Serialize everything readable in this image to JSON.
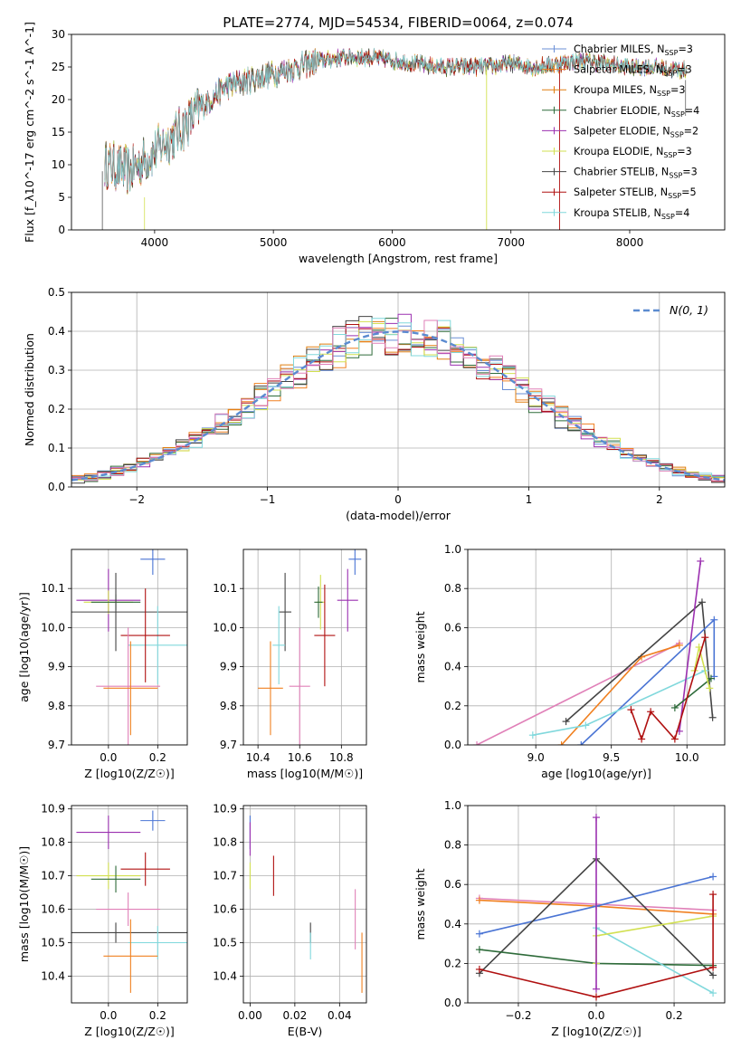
{
  "figure_title": "PLATE=2774, MJD=54534, FIBERID=0064, z=0.074",
  "colors": {
    "chabrier_miles": "#6a8fd6",
    "salpeter_miles": "#f08020",
    "kroupa_miles": "#e07f10",
    "chabrier_elodie": "#2e6b3a",
    "salpeter_elodie": "#9b30b0",
    "kroupa_elodie": "#d2e050",
    "chabrier_stelib": "#444444",
    "salpeter_stelib": "#b01010",
    "kroupa_stelib": "#80d8dc",
    "pink": "#e080b8",
    "green": "#5a8a5a",
    "blue": "#4a74d4",
    "normal_curve": "#5b8bd0",
    "grid": "#b0b0b0"
  },
  "chart_data": [
    {
      "id": "spectrum",
      "type": "line",
      "title": "",
      "xlabel": "wavelength [Angstrom, rest frame]",
      "ylabel": "Flux [f_λ10^-17 erg cm^-2 s^-1 A^-1]",
      "xlim": [
        3300,
        8800
      ],
      "ylim": [
        0,
        30
      ],
      "xticks": [
        4000,
        5000,
        6000,
        7000,
        8000
      ],
      "yticks": [
        0,
        5,
        10,
        15,
        20,
        25,
        30
      ],
      "grid": false,
      "legend_position": "right",
      "continuum_x": [
        3600,
        3800,
        4000,
        4200,
        4400,
        4600,
        4800,
        5000,
        5200,
        5400,
        5600,
        5800,
        6000,
        6200,
        6400,
        6600,
        6800,
        7000,
        7200,
        7400,
        7600,
        7800,
        8000,
        8200,
        8400
      ],
      "continuum_y": [
        10,
        9,
        12,
        15,
        19,
        22,
        23,
        24,
        25,
        26,
        26.5,
        26.5,
        26,
        25.5,
        25,
        25,
        25,
        25.5,
        25,
        25.5,
        26,
        25.5,
        25,
        25,
        24.5
      ],
      "series": [
        {
          "name": "Chabrier MILES, N_SSP=3",
          "color_key": "chabrier_miles"
        },
        {
          "name": "Salpeter MILES, N_SSP=3",
          "color_key": "salpeter_miles"
        },
        {
          "name": "Kroupa MILES, N_SSP=3",
          "color_key": "kroupa_miles"
        },
        {
          "name": "Chabrier ELODIE, N_SSP=4",
          "color_key": "chabrier_elodie"
        },
        {
          "name": "Salpeter ELODIE, N_SSP=2",
          "color_key": "salpeter_elodie"
        },
        {
          "name": "Kroupa ELODIE, N_SSP=3",
          "color_key": "kroupa_elodie"
        },
        {
          "name": "Chabrier STELIB, N_SSP=3",
          "color_key": "chabrier_stelib"
        },
        {
          "name": "Salpeter STELIB, N_SSP=5",
          "color_key": "salpeter_stelib"
        },
        {
          "name": "Kroupa STELIB, N_SSP=4",
          "color_key": "kroupa_stelib"
        }
      ]
    },
    {
      "id": "residuals",
      "type": "histogram",
      "title": "",
      "xlabel": "(data-model)/error",
      "ylabel": "Normed distribution",
      "xlim": [
        -2.5,
        2.5
      ],
      "ylim": [
        0,
        0.5
      ],
      "xticks": [
        -2,
        -1,
        0,
        1,
        2
      ],
      "xticklabels": [
        "−2",
        "−1",
        "0",
        "1",
        "2"
      ],
      "yticks": [
        0,
        0.1,
        0.2,
        0.3,
        0.4,
        0.5
      ],
      "yticklabels": [
        "0.0",
        "0.1",
        "0.2",
        "0.3",
        "0.4",
        "0.5"
      ],
      "grid": true,
      "legend_position": "top-right",
      "legend_label": "N(0, 1)",
      "bin_width": 0.1
    },
    {
      "id": "age_vs_Z",
      "type": "scatter",
      "xlabel": "Z [log10(Z/Z☉)]",
      "ylabel": "age [log10(age/yr)]",
      "xlim": [
        -0.15,
        0.32
      ],
      "ylim": [
        9.7,
        10.2
      ],
      "xticks": [
        0.0,
        0.2
      ],
      "xticklabels": [
        "0.0",
        "0.2"
      ],
      "yticks": [
        9.7,
        9.8,
        9.9,
        10.0,
        10.1
      ],
      "yticklabels": [
        "9.7",
        "9.8",
        "9.9",
        "10.0",
        "10.1"
      ],
      "grid": true,
      "points": [
        {
          "x": 0.18,
          "y": 10.175,
          "xerr": 0.05,
          "yerr": 0.04,
          "color_key": "blue"
        },
        {
          "x": 0.0,
          "y": 10.07,
          "xerr": 0.13,
          "yerr": 0.08,
          "color_key": "salpeter_elodie"
        },
        {
          "x": 0.0,
          "y": 10.065,
          "xerr": 0.1,
          "yerr": 0.03,
          "color_key": "kroupa_elodie"
        },
        {
          "x": 0.03,
          "y": 10.065,
          "xerr": 0.1,
          "yerr": 0.02,
          "color_key": "chabrier_elodie"
        },
        {
          "x": 0.03,
          "y": 10.04,
          "xerr": 0.3,
          "yerr": 0.1,
          "color_key": "chabrier_stelib"
        },
        {
          "x": 0.2,
          "y": 9.955,
          "xerr": 0.12,
          "yerr": 0.1,
          "color_key": "kroupa_stelib"
        },
        {
          "x": 0.15,
          "y": 9.98,
          "xerr": 0.1,
          "yerr": 0.12,
          "color_key": "salpeter_stelib"
        },
        {
          "x": 0.08,
          "y": 9.85,
          "xerr": 0.13,
          "yerr": 0.15,
          "color_key": "pink"
        },
        {
          "x": 0.09,
          "y": 9.845,
          "xerr": 0.11,
          "yerr": 0.12,
          "color_key": "salpeter_miles"
        }
      ]
    },
    {
      "id": "age_vs_mass",
      "type": "scatter",
      "xlabel": "mass [log10(M/M☉)]",
      "ylabel": "",
      "xlim": [
        10.33,
        10.92
      ],
      "ylim": [
        9.7,
        10.2
      ],
      "xticks": [
        10.4,
        10.6,
        10.8
      ],
      "xticklabels": [
        "10.4",
        "10.6",
        "10.8"
      ],
      "yticks": [
        9.7,
        9.8,
        9.9,
        10.0,
        10.1
      ],
      "yticklabels": [
        "9.7",
        "9.8",
        "9.9",
        "10.0",
        "10.1"
      ],
      "grid": true,
      "points": [
        {
          "x": 10.865,
          "y": 10.175,
          "xerr": 0.03,
          "yerr": 0.04,
          "color_key": "blue"
        },
        {
          "x": 10.83,
          "y": 10.07,
          "xerr": 0.05,
          "yerr": 0.08,
          "color_key": "salpeter_elodie"
        },
        {
          "x": 10.7,
          "y": 10.065,
          "xerr": 0.02,
          "yerr": 0.07,
          "color_key": "kroupa_elodie"
        },
        {
          "x": 10.69,
          "y": 10.065,
          "xerr": 0.02,
          "yerr": 0.04,
          "color_key": "chabrier_elodie"
        },
        {
          "x": 10.53,
          "y": 10.04,
          "xerr": 0.03,
          "yerr": 0.1,
          "color_key": "chabrier_stelib"
        },
        {
          "x": 10.5,
          "y": 9.955,
          "xerr": 0.03,
          "yerr": 0.1,
          "color_key": "kroupa_stelib"
        },
        {
          "x": 10.72,
          "y": 9.98,
          "xerr": 0.05,
          "yerr": 0.13,
          "color_key": "salpeter_stelib"
        },
        {
          "x": 10.6,
          "y": 9.85,
          "xerr": 0.05,
          "yerr": 0.15,
          "color_key": "pink"
        },
        {
          "x": 10.46,
          "y": 9.845,
          "xerr": 0.06,
          "yerr": 0.12,
          "color_key": "salpeter_miles"
        }
      ]
    },
    {
      "id": "weight_vs_age",
      "type": "line",
      "xlabel": "age [log10(age/yr)]",
      "ylabel": "mass weight",
      "xlim": [
        8.55,
        10.25
      ],
      "ylim": [
        0,
        1
      ],
      "xticks": [
        9.0,
        9.5,
        10.0
      ],
      "xticklabels": [
        "9.0",
        "9.5",
        "10.0"
      ],
      "yticks": [
        0,
        0.2,
        0.4,
        0.6,
        0.8,
        1.0
      ],
      "yticklabels": [
        "0.0",
        "0.2",
        "0.4",
        "0.6",
        "0.8",
        "1.0"
      ],
      "grid": true,
      "series": [
        {
          "color_key": "pink",
          "x": [
            8.61,
            9.95
          ],
          "y": [
            0.0,
            0.52
          ]
        },
        {
          "color_key": "salpeter_miles",
          "x": [
            9.17,
            9.7,
            9.95
          ],
          "y": [
            0.0,
            0.45,
            0.51
          ]
        },
        {
          "color_key": "chabrier_stelib",
          "x": [
            9.2,
            10.1,
            10.17
          ],
          "y": [
            0.12,
            0.73,
            0.14
          ]
        },
        {
          "color_key": "blue",
          "x": [
            9.3,
            10.18,
            10.18
          ],
          "y": [
            0.0,
            0.64,
            0.35
          ]
        },
        {
          "color_key": "kroupa_stelib",
          "x": [
            8.98,
            9.33,
            10.12
          ],
          "y": [
            0.05,
            0.1,
            0.38
          ]
        },
        {
          "color_key": "salpeter_elodie",
          "x": [
            9.95,
            10.09
          ],
          "y": [
            0.07,
            0.94
          ]
        },
        {
          "color_key": "chabrier_elodie",
          "x": [
            9.92,
            10.16
          ],
          "y": [
            0.19,
            0.34
          ]
        },
        {
          "color_key": "kroupa_elodie",
          "x": [
            10.05,
            10.08,
            10.15
          ],
          "y": [
            0.38,
            0.5,
            0.29
          ]
        },
        {
          "color_key": "salpeter_stelib",
          "x": [
            9.63,
            9.7,
            9.76,
            9.92,
            10.12
          ],
          "y": [
            0.18,
            0.03,
            0.17,
            0.03,
            0.55
          ]
        }
      ]
    },
    {
      "id": "mass_vs_Z",
      "type": "scatter",
      "xlabel": "Z [log10(Z/Z☉)]",
      "ylabel": "mass [log10(M/M☉)]",
      "xlim": [
        -0.15,
        0.32
      ],
      "ylim": [
        10.32,
        10.91
      ],
      "xticks": [
        0.0,
        0.2
      ],
      "xticklabels": [
        "0.0",
        "0.2"
      ],
      "yticks": [
        10.4,
        10.5,
        10.6,
        10.7,
        10.8,
        10.9
      ],
      "yticklabels": [
        "10.4",
        "10.5",
        "10.6",
        "10.7",
        "10.8",
        "10.9"
      ],
      "grid": true,
      "points": [
        {
          "x": 0.18,
          "y": 10.865,
          "xerr": 0.05,
          "yerr": 0.03,
          "color_key": "blue"
        },
        {
          "x": 0.0,
          "y": 10.83,
          "xerr": 0.13,
          "yerr": 0.05,
          "color_key": "salpeter_elodie"
        },
        {
          "x": 0.0,
          "y": 10.7,
          "xerr": 0.13,
          "yerr": 0.04,
          "color_key": "kroupa_elodie"
        },
        {
          "x": 0.03,
          "y": 10.69,
          "xerr": 0.1,
          "yerr": 0.04,
          "color_key": "chabrier_elodie"
        },
        {
          "x": 0.15,
          "y": 10.72,
          "xerr": 0.1,
          "yerr": 0.05,
          "color_key": "salpeter_stelib"
        },
        {
          "x": 0.08,
          "y": 10.6,
          "xerr": 0.13,
          "yerr": 0.05,
          "color_key": "pink"
        },
        {
          "x": 0.03,
          "y": 10.53,
          "xerr": 0.3,
          "yerr": 0.03,
          "color_key": "chabrier_stelib"
        },
        {
          "x": 0.2,
          "y": 10.5,
          "xerr": 0.12,
          "yerr": 0.05,
          "color_key": "kroupa_stelib"
        },
        {
          "x": 0.09,
          "y": 10.46,
          "xerr": 0.11,
          "yerr": 0.11,
          "color_key": "salpeter_miles"
        }
      ]
    },
    {
      "id": "mass_vs_EBV",
      "type": "scatter",
      "xlabel": "E(B-V)",
      "ylabel": "",
      "xlim": [
        -0.003,
        0.052
      ],
      "ylim": [
        10.32,
        10.91
      ],
      "xticks": [
        0.0,
        0.02,
        0.04
      ],
      "xticklabels": [
        "0.00",
        "0.02",
        "0.04"
      ],
      "yticks": [
        10.4,
        10.5,
        10.6,
        10.7,
        10.8,
        10.9
      ],
      "yticklabels": [
        "10.4",
        "10.5",
        "10.6",
        "10.7",
        "10.8",
        "10.9"
      ],
      "grid": true,
      "points": [
        {
          "x": 0.0,
          "y": 10.83,
          "xerr": 0,
          "yerr": 0.05,
          "color_key": "blue"
        },
        {
          "x": 0.0,
          "y": 10.7,
          "xerr": 0,
          "yerr": 0.04,
          "color_key": "kroupa_elodie"
        },
        {
          "x": 0.0,
          "y": 10.81,
          "xerr": 0,
          "yerr": 0.05,
          "color_key": "salpeter_elodie"
        },
        {
          "x": 0.0105,
          "y": 10.7,
          "xerr": 0,
          "yerr": 0.06,
          "color_key": "salpeter_stelib"
        },
        {
          "x": 0.027,
          "y": 10.53,
          "xerr": 0,
          "yerr": 0.03,
          "color_key": "chabrier_stelib"
        },
        {
          "x": 0.027,
          "y": 10.49,
          "xerr": 0,
          "yerr": 0.04,
          "color_key": "kroupa_stelib"
        },
        {
          "x": 0.047,
          "y": 10.57,
          "xerr": 0,
          "yerr": 0.09,
          "color_key": "pink"
        },
        {
          "x": 0.05,
          "y": 10.44,
          "xerr": 0,
          "yerr": 0.09,
          "color_key": "salpeter_miles"
        }
      ]
    },
    {
      "id": "weight_vs_Z",
      "type": "line",
      "xlabel": "Z [log10(Z/Z☉)]",
      "ylabel": "mass weight",
      "xlim": [
        -0.33,
        0.33
      ],
      "ylim": [
        0,
        1
      ],
      "xticks": [
        -0.2,
        0.0,
        0.2
      ],
      "xticklabels": [
        "−0.2",
        "0.0",
        "0.2"
      ],
      "yticks": [
        0,
        0.2,
        0.4,
        0.6,
        0.8,
        1.0
      ],
      "yticklabels": [
        "0.0",
        "0.2",
        "0.4",
        "0.6",
        "0.8",
        "1.0"
      ],
      "grid": true,
      "series": [
        {
          "color_key": "pink",
          "x": [
            -0.3,
            0.0,
            0.3
          ],
          "y": [
            0.53,
            0.5,
            0.47
          ]
        },
        {
          "color_key": "salpeter_miles",
          "x": [
            -0.3,
            0.0,
            0.3
          ],
          "y": [
            0.52,
            0.49,
            0.45
          ]
        },
        {
          "color_key": "blue",
          "x": [
            -0.3,
            0.0,
            0.3
          ],
          "y": [
            0.35,
            0.49,
            0.64
          ]
        },
        {
          "color_key": "chabrier_stelib",
          "x": [
            -0.3,
            0.0,
            0.3
          ],
          "y": [
            0.15,
            0.73,
            0.14
          ]
        },
        {
          "color_key": "chabrier_elodie",
          "x": [
            -0.3,
            0.0,
            0.3
          ],
          "y": [
            0.27,
            0.2,
            0.19
          ]
        },
        {
          "color_key": "kroupa_stelib",
          "x": [
            0.0,
            0.3
          ],
          "y": [
            0.38,
            0.05
          ]
        },
        {
          "color_key": "kroupa_elodie",
          "x": [
            0.0,
            0.0,
            0.3
          ],
          "y": [
            0.2,
            0.34,
            0.44
          ]
        },
        {
          "color_key": "salpeter_elodie",
          "x": [
            0.0,
            0.0
          ],
          "y": [
            0.07,
            0.94
          ]
        },
        {
          "color_key": "salpeter_stelib",
          "x": [
            -0.3,
            0.0,
            0.3,
            0.3
          ],
          "y": [
            0.17,
            0.03,
            0.18,
            0.55
          ]
        }
      ]
    }
  ]
}
